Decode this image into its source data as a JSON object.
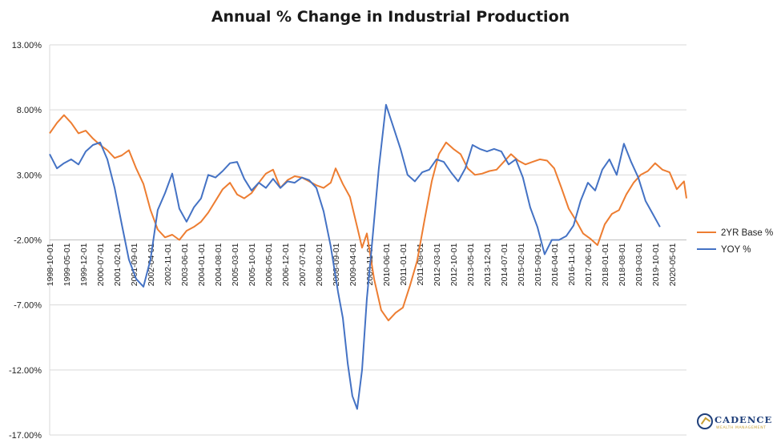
{
  "chart_data": {
    "type": "line",
    "title": "Annual % Change in Industrial Production",
    "xlabel": "",
    "ylabel": "",
    "ylim": [
      -17,
      13
    ],
    "y_ticks": [
      "13.00%",
      "8.00%",
      "3.00%",
      "-2.00%",
      "-7.00%",
      "-12.00%",
      "-17.00%"
    ],
    "y_tick_values": [
      13,
      8,
      3,
      -2,
      -7,
      -12,
      -17
    ],
    "x_tick_labels": [
      "1998-10-01",
      "1999-05-01",
      "1999-12-01",
      "2000-07-01",
      "2001-02-01",
      "2001-09-01",
      "2002-04-01",
      "2002-11-01",
      "2003-06-01",
      "2004-01-01",
      "2004-08-01",
      "2005-03-01",
      "2005-10-01",
      "2006-05-01",
      "2006-12-01",
      "2007-07-01",
      "2008-02-01",
      "2008-09-01",
      "2009-04-01",
      "2009-11-01",
      "2010-06-01",
      "2011-01-01",
      "2011-08-01",
      "2012-03-01",
      "2012-10-01",
      "2013-05-01",
      "2013-12-01",
      "2014-07-01",
      "2015-02-01",
      "2015-09-01",
      "2016-04-01",
      "2016-11-01",
      "2017-06-01",
      "2018-01-01",
      "2018-08-01",
      "2019-03-01",
      "2019-10-01",
      "2020-05-01"
    ],
    "x_range": [
      "1998-10-01",
      "2020-11-01"
    ],
    "grid": "horizontal",
    "legend_position": "right",
    "series": [
      {
        "name": "2YR Base %",
        "color": "#ed7d31",
        "points": [
          [
            "1998-10-01",
            6.2
          ],
          [
            "1999-01-01",
            7.0
          ],
          [
            "1999-04-01",
            7.6
          ],
          [
            "1999-07-01",
            7.0
          ],
          [
            "1999-10-01",
            6.2
          ],
          [
            "2000-01-01",
            6.4
          ],
          [
            "2000-04-01",
            5.8
          ],
          [
            "2000-07-01",
            5.3
          ],
          [
            "2000-10-01",
            4.9
          ],
          [
            "2001-01-01",
            4.3
          ],
          [
            "2001-04-01",
            4.5
          ],
          [
            "2001-07-01",
            4.9
          ],
          [
            "2001-10-01",
            3.5
          ],
          [
            "2002-01-01",
            2.3
          ],
          [
            "2002-04-01",
            0.3
          ],
          [
            "2002-07-01",
            -1.2
          ],
          [
            "2002-10-01",
            -1.8
          ],
          [
            "2003-01-01",
            -1.6
          ],
          [
            "2003-04-01",
            -2.0
          ],
          [
            "2003-07-01",
            -1.3
          ],
          [
            "2003-10-01",
            -1.0
          ],
          [
            "2004-01-01",
            -0.6
          ],
          [
            "2004-04-01",
            0.1
          ],
          [
            "2004-07-01",
            1.0
          ],
          [
            "2004-10-01",
            1.9
          ],
          [
            "2005-01-01",
            2.4
          ],
          [
            "2005-04-01",
            1.5
          ],
          [
            "2005-07-01",
            1.2
          ],
          [
            "2005-10-01",
            1.6
          ],
          [
            "2006-01-01",
            2.4
          ],
          [
            "2006-04-01",
            3.1
          ],
          [
            "2006-07-01",
            3.4
          ],
          [
            "2006-10-01",
            2.0
          ],
          [
            "2007-01-01",
            2.6
          ],
          [
            "2007-04-01",
            2.9
          ],
          [
            "2007-07-01",
            2.8
          ],
          [
            "2007-10-01",
            2.5
          ],
          [
            "2008-01-01",
            2.2
          ],
          [
            "2008-04-01",
            2.0
          ],
          [
            "2008-07-01",
            2.4
          ],
          [
            "2008-09-01",
            3.5
          ],
          [
            "2008-12-01",
            2.3
          ],
          [
            "2009-03-01",
            1.3
          ],
          [
            "2009-06-01",
            -1.0
          ],
          [
            "2009-08-01",
            -2.6
          ],
          [
            "2009-10-01",
            -1.5
          ],
          [
            "2010-01-01",
            -5.0
          ],
          [
            "2010-04-01",
            -7.4
          ],
          [
            "2010-07-01",
            -8.2
          ],
          [
            "2010-10-01",
            -7.6
          ],
          [
            "2011-01-01",
            -7.2
          ],
          [
            "2011-04-01",
            -5.5
          ],
          [
            "2011-07-01",
            -3.6
          ],
          [
            "2011-10-01",
            -0.5
          ],
          [
            "2012-01-01",
            2.5
          ],
          [
            "2012-04-01",
            4.6
          ],
          [
            "2012-07-01",
            5.5
          ],
          [
            "2012-10-01",
            5.0
          ],
          [
            "2013-01-01",
            4.6
          ],
          [
            "2013-04-01",
            3.5
          ],
          [
            "2013-07-01",
            3.0
          ],
          [
            "2013-10-01",
            3.1
          ],
          [
            "2014-01-01",
            3.3
          ],
          [
            "2014-04-01",
            3.4
          ],
          [
            "2014-07-01",
            4.0
          ],
          [
            "2014-10-01",
            4.6
          ],
          [
            "2015-01-01",
            4.1
          ],
          [
            "2015-04-01",
            3.8
          ],
          [
            "2015-07-01",
            4.0
          ],
          [
            "2015-10-01",
            4.2
          ],
          [
            "2016-01-01",
            4.1
          ],
          [
            "2016-04-01",
            3.5
          ],
          [
            "2016-07-01",
            2.0
          ],
          [
            "2016-10-01",
            0.4
          ],
          [
            "2017-01-01",
            -0.5
          ],
          [
            "2017-04-01",
            -1.5
          ],
          [
            "2017-07-01",
            -1.9
          ],
          [
            "2017-10-01",
            -2.4
          ],
          [
            "2018-01-01",
            -0.8
          ],
          [
            "2018-04-01",
            0.0
          ],
          [
            "2018-07-01",
            0.3
          ],
          [
            "2018-10-01",
            1.5
          ],
          [
            "2019-01-01",
            2.4
          ],
          [
            "2019-04-01",
            3.0
          ],
          [
            "2019-07-01",
            3.3
          ],
          [
            "2019-10-01",
            3.9
          ],
          [
            "2020-01-01",
            3.4
          ],
          [
            "2020-04-01",
            3.2
          ],
          [
            "2020-07-01",
            1.9
          ],
          [
            "2020-10-01",
            2.5
          ],
          [
            "2020-11-01",
            1.2
          ]
        ]
      },
      {
        "name": "YOY %",
        "color": "#4472c4",
        "points": [
          [
            "1998-10-01",
            4.6
          ],
          [
            "1999-01-01",
            3.5
          ],
          [
            "1999-04-01",
            3.9
          ],
          [
            "1999-07-01",
            4.2
          ],
          [
            "1999-10-01",
            3.8
          ],
          [
            "2000-01-01",
            4.8
          ],
          [
            "2000-04-01",
            5.3
          ],
          [
            "2000-07-01",
            5.5
          ],
          [
            "2000-10-01",
            4.2
          ],
          [
            "2001-01-01",
            2.0
          ],
          [
            "2001-04-01",
            -0.8
          ],
          [
            "2001-07-01",
            -3.5
          ],
          [
            "2001-10-01",
            -5.0
          ],
          [
            "2002-01-01",
            -5.6
          ],
          [
            "2002-04-01",
            -3.5
          ],
          [
            "2002-07-01",
            0.3
          ],
          [
            "2002-10-01",
            1.6
          ],
          [
            "2003-01-01",
            3.1
          ],
          [
            "2003-04-01",
            0.4
          ],
          [
            "2003-07-01",
            -0.6
          ],
          [
            "2003-10-01",
            0.5
          ],
          [
            "2004-01-01",
            1.2
          ],
          [
            "2004-04-01",
            3.0
          ],
          [
            "2004-07-01",
            2.8
          ],
          [
            "2004-10-01",
            3.3
          ],
          [
            "2005-01-01",
            3.9
          ],
          [
            "2005-04-01",
            4.0
          ],
          [
            "2005-07-01",
            2.7
          ],
          [
            "2005-10-01",
            1.8
          ],
          [
            "2006-01-01",
            2.4
          ],
          [
            "2006-04-01",
            2.0
          ],
          [
            "2006-07-01",
            2.7
          ],
          [
            "2006-10-01",
            2.0
          ],
          [
            "2007-01-01",
            2.5
          ],
          [
            "2007-04-01",
            2.4
          ],
          [
            "2007-07-01",
            2.8
          ],
          [
            "2007-10-01",
            2.6
          ],
          [
            "2008-01-01",
            2.0
          ],
          [
            "2008-04-01",
            0.2
          ],
          [
            "2008-07-01",
            -2.5
          ],
          [
            "2008-10-01",
            -6.0
          ],
          [
            "2008-12-01",
            -8.0
          ],
          [
            "2009-02-01",
            -11.5
          ],
          [
            "2009-04-01",
            -14.0
          ],
          [
            "2009-06-01",
            -15.0
          ],
          [
            "2009-08-01",
            -12.0
          ],
          [
            "2009-10-01",
            -6.5
          ],
          [
            "2009-12-01",
            -2.6
          ],
          [
            "2010-03-01",
            3.5
          ],
          [
            "2010-06-01",
            8.4
          ],
          [
            "2010-09-01",
            6.7
          ],
          [
            "2010-12-01",
            5.0
          ],
          [
            "2011-03-01",
            3.0
          ],
          [
            "2011-06-01",
            2.5
          ],
          [
            "2011-09-01",
            3.2
          ],
          [
            "2011-12-01",
            3.4
          ],
          [
            "2012-03-01",
            4.2
          ],
          [
            "2012-06-01",
            4.0
          ],
          [
            "2012-09-01",
            3.2
          ],
          [
            "2012-12-01",
            2.5
          ],
          [
            "2013-03-01",
            3.5
          ],
          [
            "2013-06-01",
            5.3
          ],
          [
            "2013-09-01",
            5.0
          ],
          [
            "2013-12-01",
            4.8
          ],
          [
            "2014-03-01",
            5.0
          ],
          [
            "2014-06-01",
            4.8
          ],
          [
            "2014-09-01",
            3.8
          ],
          [
            "2014-12-01",
            4.2
          ],
          [
            "2015-03-01",
            2.8
          ],
          [
            "2015-06-01",
            0.5
          ],
          [
            "2015-09-01",
            -1.0
          ],
          [
            "2015-12-01",
            -3.1
          ],
          [
            "2016-03-01",
            -2.0
          ],
          [
            "2016-06-01",
            -2.0
          ],
          [
            "2016-09-01",
            -1.7
          ],
          [
            "2016-12-01",
            -0.9
          ],
          [
            "2017-03-01",
            1.0
          ],
          [
            "2017-06-01",
            2.4
          ],
          [
            "2017-09-01",
            1.8
          ],
          [
            "2017-12-01",
            3.4
          ],
          [
            "2018-03-01",
            4.2
          ],
          [
            "2018-06-01",
            3.0
          ],
          [
            "2018-09-01",
            5.4
          ],
          [
            "2018-12-01",
            4.0
          ],
          [
            "2019-03-01",
            2.8
          ],
          [
            "2019-06-01",
            1.0
          ],
          [
            "2019-09-01",
            0.0
          ],
          [
            "2019-12-01",
            -1.0
          ]
        ]
      }
    ]
  },
  "logo": {
    "name": "CADENCE",
    "tagline": "WEALTH MANAGEMENT"
  }
}
